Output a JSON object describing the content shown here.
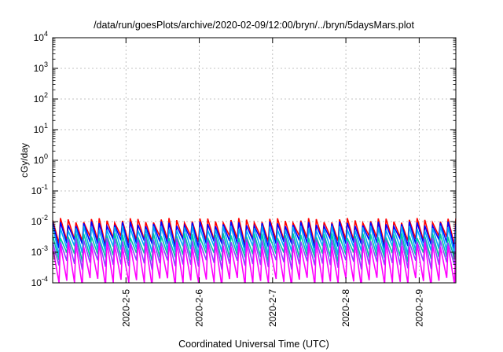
{
  "chart_data": {
    "type": "line",
    "title": "/data/run/goesPlots/archive/2020-02-09/12:00/bryn/../bryn/5daysMars.plot",
    "xlabel": "Coordinated Universal Time (UTC)",
    "ylabel": "cGy/day",
    "x_range": [
      "2020-02-04T00:00",
      "2020-02-09T12:00"
    ],
    "x_ticks": [
      "2020-2-5",
      "2020-2-6",
      "2020-2-7",
      "2020-2-8",
      "2020-2-9"
    ],
    "y_scale": "log",
    "y_range": [
      0.0001,
      10000
    ],
    "y_ticks": [
      {
        "base": "10",
        "exp": "-4"
      },
      {
        "base": "10",
        "exp": "-3"
      },
      {
        "base": "10",
        "exp": "-2"
      },
      {
        "base": "10",
        "exp": "-1"
      },
      {
        "base": "10",
        "exp": "0"
      },
      {
        "base": "10",
        "exp": "1"
      },
      {
        "base": "10",
        "exp": "2"
      },
      {
        "base": "10",
        "exp": "3"
      },
      {
        "base": "10",
        "exp": "4"
      }
    ],
    "grid": true,
    "pattern": "sawtooth",
    "cycles": 52,
    "series": [
      {
        "color": "#ff0000",
        "peak": 0.011,
        "trough": 0.0028
      },
      {
        "color": "#0000ff",
        "peak": 0.0085,
        "trough": 0.0022
      },
      {
        "color": "#00aaff",
        "peak": 0.0062,
        "trough": 0.0013
      },
      {
        "color": "#00c8a0",
        "peak": 0.0035,
        "trough": 0.0008
      },
      {
        "color": "#8844ff",
        "peak": 0.0025,
        "trough": 0.00045
      },
      {
        "color": "#ff00ff",
        "peak": 0.0018,
        "trough": 0.00012
      }
    ]
  }
}
